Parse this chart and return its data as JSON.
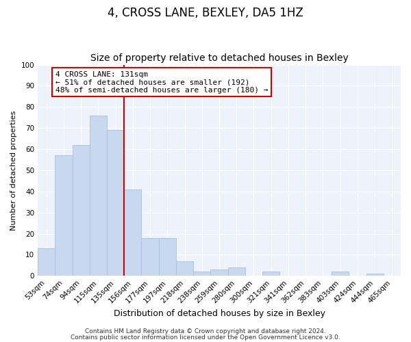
{
  "title": "4, CROSS LANE, BEXLEY, DA5 1HZ",
  "subtitle": "Size of property relative to detached houses in Bexley",
  "xlabel": "Distribution of detached houses by size in Bexley",
  "ylabel": "Number of detached properties",
  "bar_labels": [
    "53sqm",
    "74sqm",
    "94sqm",
    "115sqm",
    "135sqm",
    "156sqm",
    "177sqm",
    "197sqm",
    "218sqm",
    "238sqm",
    "259sqm",
    "280sqm",
    "300sqm",
    "321sqm",
    "341sqm",
    "362sqm",
    "383sqm",
    "403sqm",
    "424sqm",
    "444sqm",
    "465sqm"
  ],
  "bar_values": [
    13,
    57,
    62,
    76,
    69,
    41,
    18,
    18,
    7,
    2,
    3,
    4,
    0,
    2,
    0,
    0,
    0,
    2,
    0,
    1,
    0
  ],
  "bar_color": "#c8d8ee",
  "bar_edge_color": "#a8c0e0",
  "vline_x_index": 4,
  "vline_color": "#cc0000",
  "ylim": [
    0,
    100
  ],
  "annotation_text": "4 CROSS LANE: 131sqm\n← 51% of detached houses are smaller (192)\n48% of semi-detached houses are larger (180) →",
  "annotation_box_color": "#ffffff",
  "annotation_box_edge": "#cc0000",
  "footer_line1": "Contains HM Land Registry data © Crown copyright and database right 2024.",
  "footer_line2": "Contains public sector information licensed under the Open Government Licence v3.0.",
  "title_fontsize": 12,
  "subtitle_fontsize": 10,
  "xlabel_fontsize": 9,
  "ylabel_fontsize": 8,
  "tick_fontsize": 7.5,
  "annot_fontsize": 8,
  "footer_fontsize": 6.5,
  "bg_color": "#eef2fa"
}
